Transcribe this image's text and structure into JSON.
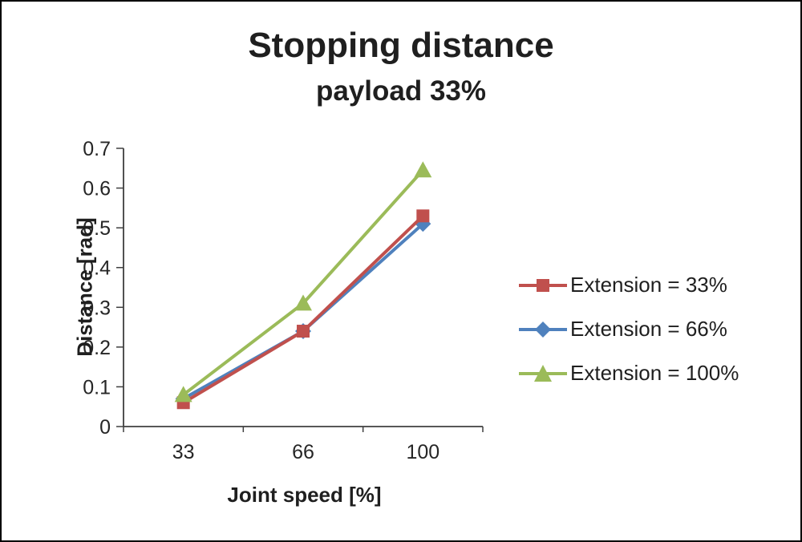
{
  "title": "Stopping distance",
  "subtitle": "payload 33%",
  "chart_data": {
    "type": "line",
    "title": "Stopping distance",
    "subtitle": "payload 33%",
    "xlabel": "Joint speed [%]",
    "ylabel": "Distance [rad]",
    "categories": [
      "33",
      "66",
      "100"
    ],
    "series": [
      {
        "name": "Extension = 33%",
        "values": [
          0.06,
          0.24,
          0.53
        ],
        "color": "#c0504d",
        "marker": "square"
      },
      {
        "name": "Extension = 66%",
        "values": [
          0.07,
          0.24,
          0.51
        ],
        "color": "#4f81bd",
        "marker": "diamond"
      },
      {
        "name": "Extension = 100%",
        "values": [
          0.08,
          0.31,
          0.645
        ],
        "color": "#9bbb59",
        "marker": "triangle"
      }
    ],
    "ylim": [
      0,
      0.7
    ],
    "ytick_step": 0.1,
    "grid": false,
    "legend_position": "right",
    "axis_color": "#3f3f3f",
    "tick_label_color": "#262626"
  }
}
